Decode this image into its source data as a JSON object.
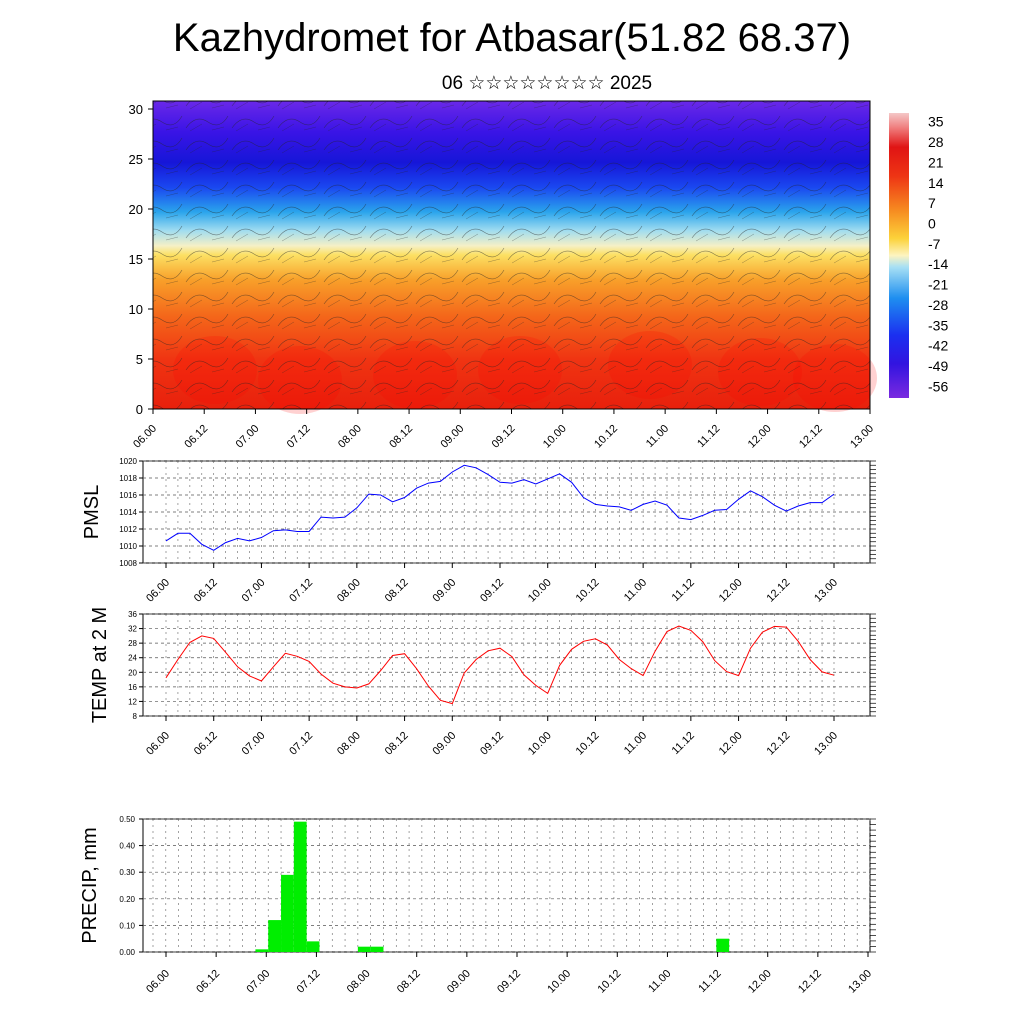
{
  "title": "Kazhydromet for Atbasar(51.82 68.37)",
  "subtitle": "06 ☆☆☆☆☆☆☆☆ 2025",
  "chart_data": [
    {
      "id": "cross-section",
      "type": "heatmap",
      "title": "",
      "xlabel": "",
      "ylabel": "",
      "xticks": [
        "06.00",
        "06.12",
        "07.00",
        "07.12",
        "08.00",
        "08.12",
        "09.00",
        "09.12",
        "10.00",
        "10.12",
        "11.00",
        "11.12",
        "12.00",
        "12.12",
        "13.00"
      ],
      "yticks": [
        0,
        5,
        10,
        15,
        20,
        25,
        30
      ],
      "ylim": [
        0,
        30.8
      ],
      "colorbar": {
        "ticks": [
          35,
          28,
          21,
          14,
          7,
          0,
          -7,
          -14,
          -21,
          -28,
          -35,
          -42,
          -49,
          -56
        ],
        "range": [
          -60,
          38
        ]
      }
    },
    {
      "id": "pmsl",
      "type": "line",
      "ylabel": "PMSL",
      "ylim": [
        1008,
        1020
      ],
      "yticks": [
        1008,
        1010,
        1012,
        1014,
        1016,
        1018,
        1020
      ],
      "grid": true,
      "color": "#0000ff",
      "xticks": [
        "06.00",
        "06.12",
        "07.00",
        "07.12",
        "08.00",
        "08.12",
        "09.00",
        "09.12",
        "10.00",
        "10.12",
        "11.00",
        "11.12",
        "12.00",
        "12.12",
        "13.00"
      ],
      "values": [
        1010.6,
        1011.5,
        1011.5,
        1010.2,
        1009.5,
        1010.4,
        1010.9,
        1010.6,
        1011.0,
        1011.8,
        1011.9,
        1011.7,
        1011.7,
        1013.4,
        1013.3,
        1013.4,
        1014.5,
        1016.1,
        1016.0,
        1015.2,
        1015.7,
        1016.8,
        1017.4,
        1017.6,
        1018.7,
        1019.5,
        1019.2,
        1018.4,
        1017.5,
        1017.4,
        1017.8,
        1017.3,
        1017.9,
        1018.5,
        1017.5,
        1015.7,
        1014.9,
        1014.7,
        1014.6,
        1014.2,
        1014.9,
        1015.3,
        1014.8,
        1013.3,
        1013.1,
        1013.6,
        1014.2,
        1014.3,
        1015.5,
        1016.5,
        1015.8,
        1014.8,
        1014.1,
        1014.7,
        1015.1,
        1015.1,
        1016.1
      ]
    },
    {
      "id": "temp2m",
      "type": "line",
      "ylabel": "TEMP at 2 M",
      "ylim": [
        8,
        36
      ],
      "yticks": [
        8,
        12,
        16,
        20,
        24,
        28,
        32,
        36
      ],
      "grid": true,
      "color": "#ff0000",
      "xticks": [
        "06.00",
        "06.12",
        "07.00",
        "07.12",
        "08.00",
        "08.12",
        "09.00",
        "09.12",
        "10.00",
        "10.12",
        "11.00",
        "11.12",
        "12.00",
        "12.12",
        "13.00"
      ],
      "values": [
        18.5,
        23.5,
        28.2,
        30.0,
        29.3,
        25.5,
        21.5,
        19.0,
        17.6,
        21.5,
        25.2,
        24.4,
        23.0,
        19.5,
        17.0,
        16.0,
        15.7,
        16.8,
        20.5,
        24.6,
        25.1,
        21.0,
        16.2,
        12.3,
        11.4,
        19.8,
        23.5,
        25.9,
        26.6,
        24.3,
        19.3,
        16.4,
        14.2,
        21.9,
        26.3,
        28.5,
        29.2,
        27.5,
        23.5,
        21.0,
        19.1,
        25.8,
        31.2,
        32.7,
        31.5,
        28.4,
        23.2,
        20.2,
        19.1,
        26.6,
        31.0,
        32.6,
        32.4,
        28.5,
        23.5,
        20.1,
        19.2
      ]
    },
    {
      "id": "precip",
      "type": "bar",
      "ylabel": "PRECIP, mm",
      "ylim": [
        0,
        0.5
      ],
      "yticks": [
        "0.00",
        "0.10",
        "0.20",
        "0.30",
        "0.40",
        "0.50"
      ],
      "grid": true,
      "color": "#00ee00",
      "xticks": [
        "06.00",
        "06.12",
        "07.00",
        "07.12",
        "08.00",
        "08.12",
        "09.00",
        "09.12",
        "10.00",
        "10.12",
        "11.00",
        "11.12",
        "12.00",
        "12.12",
        "13.00"
      ],
      "bars": [
        {
          "x": 8,
          "value": 0.01
        },
        {
          "x": 9,
          "value": 0.12
        },
        {
          "x": 10,
          "value": 0.29
        },
        {
          "x": 11,
          "value": 0.49
        },
        {
          "x": 12,
          "value": 0.04
        },
        {
          "x": 16,
          "value": 0.02
        },
        {
          "x": 17,
          "value": 0.02
        },
        {
          "x": 44,
          "value": 0.05
        }
      ]
    }
  ]
}
